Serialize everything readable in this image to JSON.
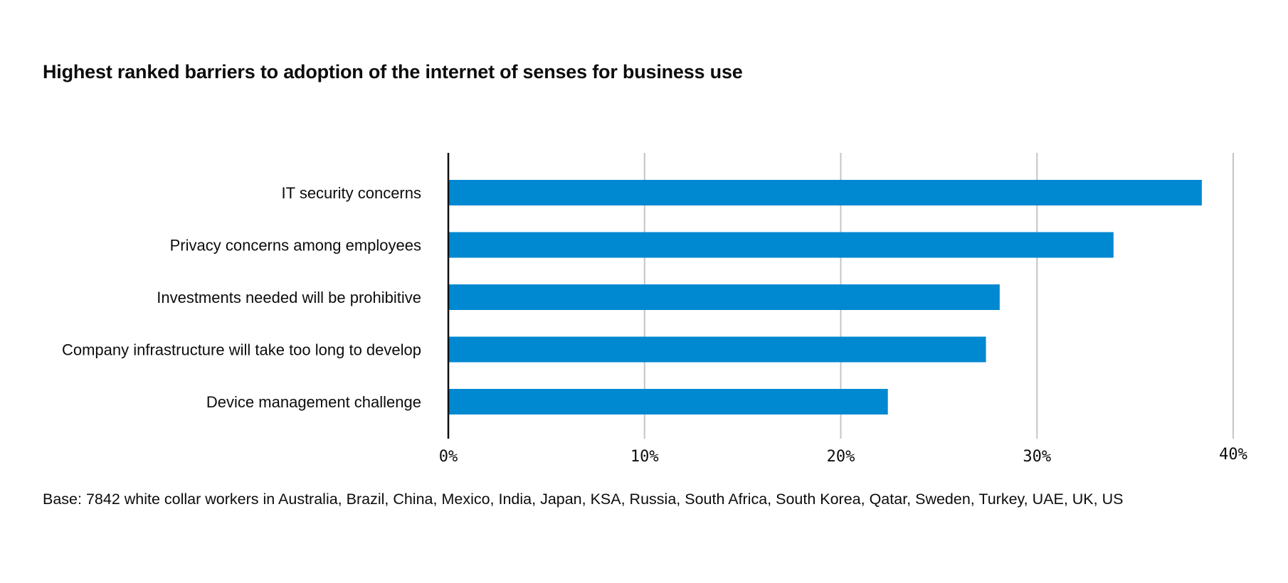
{
  "chart_data": {
    "type": "bar",
    "orientation": "horizontal",
    "title": "Highest ranked barriers to adoption of the internet of senses for business use",
    "categories": [
      "IT security concerns",
      "Privacy concerns among employees",
      "Investments needed will be prohibitive",
      "Company infrastructure will take too long to develop",
      "Device management challenge"
    ],
    "values": [
      38.4,
      33.9,
      28.1,
      27.4,
      22.4
    ],
    "xlim": [
      0,
      40
    ],
    "ticks": [
      0,
      10,
      20,
      30,
      40
    ],
    "tick_labels": [
      "0%",
      "10%",
      "20%",
      "30%",
      "40%"
    ],
    "xlabel": "",
    "ylabel": "",
    "grid": "vertical",
    "bar_color": "#0088D1",
    "grid_color": "#c4c4c4",
    "axis_color": "#0c0c0c",
    "footnote": "Base: 7842 white collar workers in Australia, Brazil, China, Mexico, India, Japan, KSA, Russia, South Africa, South Korea, Qatar, Sweden, Turkey, UAE, UK, US"
  }
}
